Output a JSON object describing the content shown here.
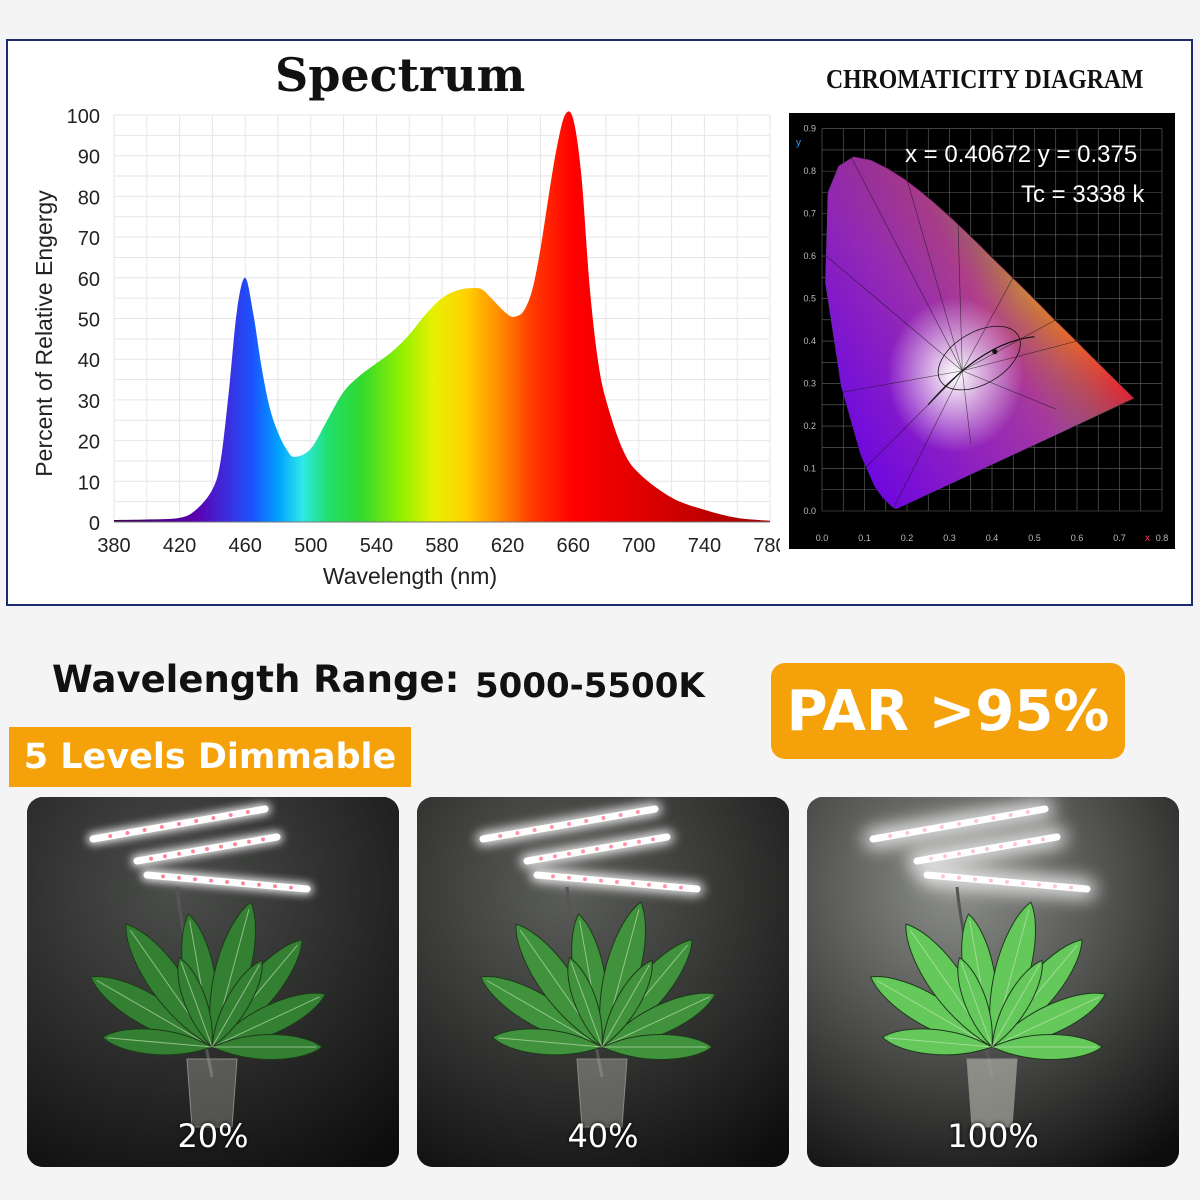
{
  "spectrum": {
    "title": "Spectrum",
    "chart_data": {
      "type": "area",
      "title": "Spectrum",
      "xlabel": "Wavelength (nm)",
      "ylabel": "Percent of Relative Engergy",
      "xlim": [
        380,
        780
      ],
      "ylim": [
        0,
        100
      ],
      "x_ticks": [
        "380",
        "420",
        "460",
        "500",
        "540",
        "580",
        "620",
        "660",
        "700",
        "740",
        "780"
      ],
      "y_ticks": [
        "0",
        "10",
        "20",
        "30",
        "40",
        "50",
        "60",
        "70",
        "80",
        "90",
        "100"
      ],
      "grid": true,
      "x": [
        380,
        400,
        420,
        430,
        440,
        445,
        450,
        455,
        460,
        465,
        470,
        475,
        480,
        485,
        490,
        500,
        510,
        520,
        530,
        540,
        550,
        560,
        570,
        580,
        590,
        600,
        605,
        610,
        620,
        625,
        630,
        635,
        640,
        645,
        650,
        655,
        660,
        665,
        670,
        675,
        680,
        690,
        700,
        720,
        740,
        760,
        780
      ],
      "y": [
        0.5,
        0.6,
        1,
        3,
        8,
        15,
        32,
        52,
        60,
        51,
        38,
        28,
        22,
        18,
        16,
        18,
        25,
        32,
        36,
        39,
        42,
        46,
        51,
        55,
        57,
        57.5,
        57,
        55,
        51,
        50.5,
        52,
        57,
        67,
        80,
        92,
        100,
        99,
        85,
        58,
        40,
        30,
        18,
        12,
        6,
        3,
        1,
        0.3
      ]
    }
  },
  "chromaticity": {
    "title": "CHROMATICITY DIAGRAM",
    "coord_text": "x = 0.40672 y = 0.375",
    "cct_text": "Tc = 3338 k",
    "x_axis_letter": "x",
    "y_axis_letter": "y",
    "x_ticks": [
      "0.0",
      "0.1",
      "0.2",
      "0.3",
      "0.4",
      "0.5",
      "0.6",
      "0.7",
      "0.8"
    ],
    "y_ticks": [
      "0.9",
      "0.8",
      "0.7",
      "0.6",
      "0.5",
      "0.4",
      "0.3",
      "0.2",
      "0.1",
      "0.0"
    ],
    "point": {
      "x": 0.40672,
      "y": 0.375
    }
  },
  "features": {
    "range_label": "Wavelength Range:",
    "range_value": "5000-5500K",
    "par_text": "PAR >95%",
    "dim_text": "5 Levels Dimmable"
  },
  "photos": [
    {
      "label": "20%",
      "brightness": 0.2
    },
    {
      "label": "40%",
      "brightness": 0.4
    },
    {
      "label": "100%",
      "brightness": 1.0
    }
  ],
  "colors": {
    "accent": "#f5a20a",
    "border": "#1e2a6e"
  }
}
